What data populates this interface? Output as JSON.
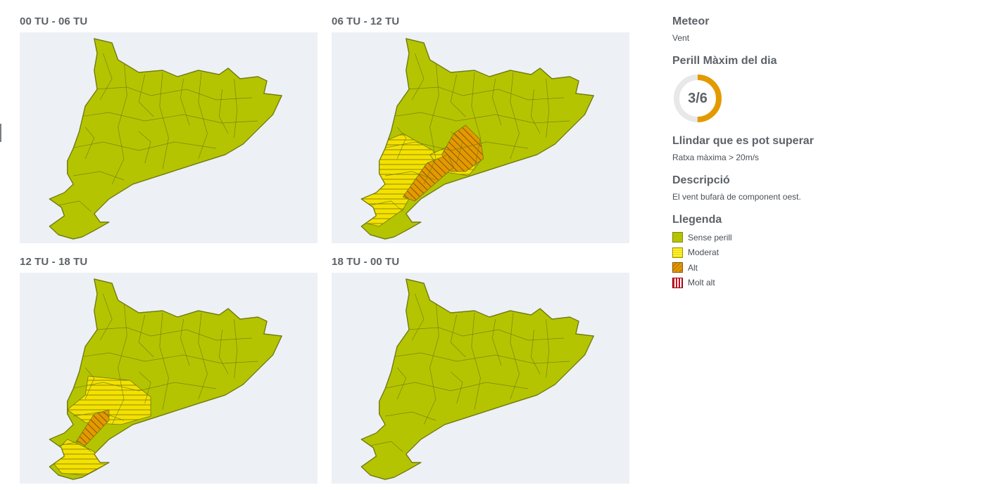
{
  "panels": [
    {
      "id": "p1",
      "title": "00 TU - 06 TU",
      "zones": []
    },
    {
      "id": "p2",
      "title": "06 TU - 12 TU",
      "zones": [
        {
          "level": "moderat",
          "pts": [
            [
              0.12,
              0.55
            ],
            [
              0.24,
              0.48
            ],
            [
              0.34,
              0.56
            ],
            [
              0.37,
              0.64
            ],
            [
              0.28,
              0.74
            ],
            [
              0.24,
              0.84
            ],
            [
              0.16,
              0.92
            ],
            [
              0.1,
              0.9
            ],
            [
              0.08,
              0.72
            ]
          ]
        },
        {
          "level": "moderat",
          "pts": [
            [
              0.33,
              0.58
            ],
            [
              0.44,
              0.51
            ],
            [
              0.5,
              0.61
            ],
            [
              0.46,
              0.68
            ],
            [
              0.37,
              0.66
            ]
          ]
        },
        {
          "level": "alt",
          "pts": [
            [
              0.41,
              0.48
            ],
            [
              0.45,
              0.44
            ],
            [
              0.5,
              0.51
            ],
            [
              0.51,
              0.6
            ],
            [
              0.45,
              0.66
            ],
            [
              0.4,
              0.66
            ],
            [
              0.37,
              0.58
            ]
          ]
        },
        {
          "level": "alt",
          "pts": [
            [
              0.32,
              0.62
            ],
            [
              0.39,
              0.58
            ],
            [
              0.41,
              0.64
            ],
            [
              0.28,
              0.8
            ],
            [
              0.24,
              0.78
            ]
          ]
        }
      ]
    },
    {
      "id": "p3",
      "title": "12 TU - 18 TU",
      "zones": [
        {
          "level": "moderat",
          "pts": [
            [
              0.23,
              0.49
            ],
            [
              0.37,
              0.51
            ],
            [
              0.44,
              0.59
            ],
            [
              0.44,
              0.68
            ],
            [
              0.34,
              0.72
            ],
            [
              0.22,
              0.71
            ],
            [
              0.16,
              0.65
            ],
            [
              0.22,
              0.58
            ]
          ]
        },
        {
          "level": "moderat",
          "pts": [
            [
              0.16,
              0.79
            ],
            [
              0.24,
              0.84
            ],
            [
              0.3,
              0.9
            ],
            [
              0.22,
              0.96
            ],
            [
              0.14,
              0.95
            ],
            [
              0.1,
              0.88
            ]
          ]
        },
        {
          "level": "alt",
          "pts": [
            [
              0.25,
              0.67
            ],
            [
              0.3,
              0.65
            ],
            [
              0.3,
              0.7
            ],
            [
              0.22,
              0.82
            ],
            [
              0.19,
              0.8
            ]
          ]
        }
      ]
    },
    {
      "id": "p4",
      "title": "18 TU - 00 TU",
      "zones": []
    }
  ],
  "info": {
    "meteor_heading": "Meteor",
    "meteor_value": "Vent",
    "danger_heading": "Perill Màxim del dia",
    "danger_level": 3,
    "danger_max": 6,
    "danger_label": "3/6",
    "threshold_heading": "Llindar que es pot superar",
    "threshold_value": "Ratxa màxima > 20m/s",
    "description_heading": "Descripció",
    "description_value": "El vent bufarà de component oest.",
    "legend_heading": "Llegenda",
    "legend": [
      {
        "key": "sense",
        "label": "Sense perill"
      },
      {
        "key": "moderat",
        "label": "Moderat"
      },
      {
        "key": "alt",
        "label": "Alt"
      },
      {
        "key": "moltalt",
        "label": "Molt alt"
      }
    ]
  },
  "colors": {
    "map_bg": "#edf0f4",
    "sense_perill": "#b5c400",
    "moderat": "#f3e200",
    "alt": "#e39a00",
    "molt_alt": "#d0021b",
    "border": "#6f7a12",
    "gauge_track": "#e8e8e8",
    "gauge_fill": "#e39a00"
  }
}
